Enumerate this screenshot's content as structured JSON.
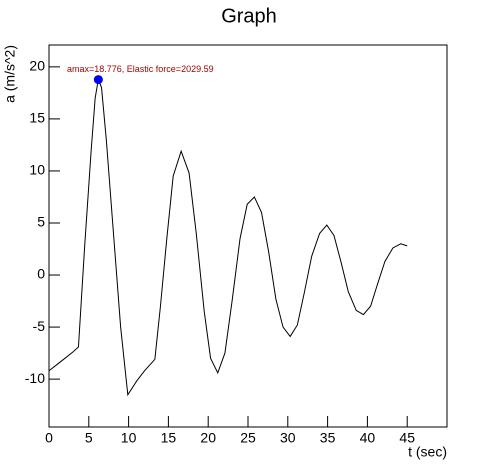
{
  "chart_data": {
    "type": "line",
    "title": "Graph",
    "x_label": "t (sec)",
    "y_label": "a (m/s^2)",
    "annotation": "amax=18.776, Elastic force=2029.59",
    "color": "#000000",
    "marker_color": "#0000ff",
    "annotation_color": "#990000",
    "x": [
      0,
      1,
      2,
      3,
      3.7,
      4.5,
      5.3,
      5.8,
      6.2,
      6.6,
      7.2,
      8,
      9,
      9.9,
      11,
      12,
      13.3,
      14,
      14.8,
      15.6,
      16.6,
      17.6,
      18.5,
      19.5,
      20.3,
      21.2,
      22.1,
      23,
      24,
      24.9,
      25.8,
      26.7,
      27.6,
      28.5,
      29.4,
      30.3,
      31.2,
      32.1,
      33,
      34,
      34.9,
      35.8,
      36.7,
      37.6,
      38.6,
      39.5,
      40.4,
      41.3,
      42.2,
      43.2,
      44.2,
      45
    ],
    "values": [
      -9.2,
      -8.6,
      -8.0,
      -7.4,
      -6.9,
      3,
      12,
      17,
      18.8,
      18,
      13,
      5,
      -5,
      -11.5,
      -10.2,
      -9.2,
      -8.1,
      -3,
      3.5,
      9.5,
      11.9,
      9.8,
      4,
      -3.5,
      -8,
      -9.4,
      -7.5,
      -2.5,
      3.5,
      6.8,
      7.5,
      6,
      2.2,
      -2.3,
      -5,
      -5.9,
      -4.8,
      -1.6,
      1.8,
      4,
      4.8,
      3.8,
      1.2,
      -1.6,
      -3.4,
      -3.8,
      -3,
      -0.8,
      1.3,
      2.6,
      3.0,
      2.8
    ],
    "marker": {
      "x": 6.2,
      "y": 18.776
    },
    "xlim": [
      0,
      50
    ],
    "xticks": [
      0,
      5,
      10,
      15,
      20,
      25,
      30,
      35,
      40,
      45
    ],
    "ylim": [
      -14.6,
      22.1
    ],
    "yticks": [
      -10,
      -5,
      0,
      5,
      10,
      15,
      20
    ]
  }
}
